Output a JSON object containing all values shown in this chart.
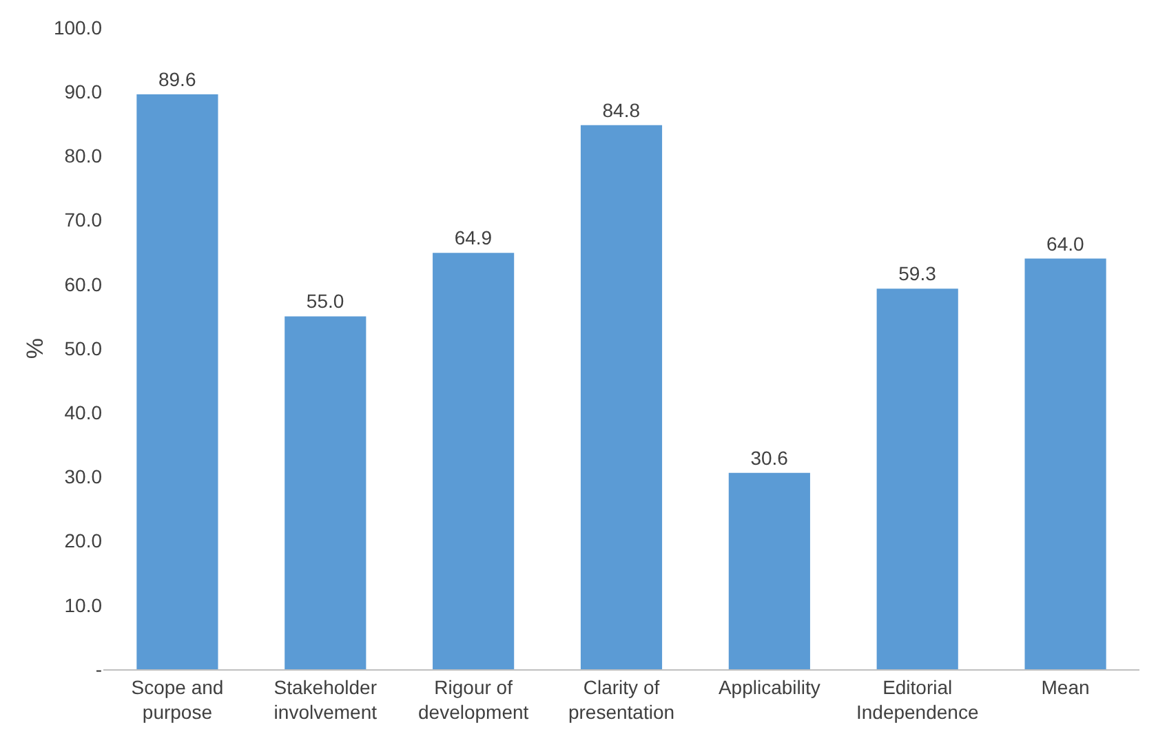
{
  "chart_data": {
    "type": "bar",
    "ylabel": "%",
    "categories": [
      "Scope and purpose",
      "Stakeholder involvement",
      "Rigour of development",
      "Clarity of presentation",
      "Applicability",
      "Editorial Independence",
      "Mean"
    ],
    "values": [
      89.6,
      55.0,
      64.9,
      84.8,
      30.6,
      59.3,
      64.0
    ],
    "value_labels": [
      "89.6",
      "55.0",
      "64.9",
      "84.8",
      "30.6",
      "59.3",
      "64.0"
    ],
    "color": "#5b9bd5",
    "ylim": [
      0,
      100
    ],
    "yticks": [
      {
        "value": 0,
        "label": "-"
      },
      {
        "value": 10,
        "label": "10.0"
      },
      {
        "value": 20,
        "label": "20.0"
      },
      {
        "value": 30,
        "label": "30.0"
      },
      {
        "value": 40,
        "label": "40.0"
      },
      {
        "value": 50,
        "label": "50.0"
      },
      {
        "value": 60,
        "label": "60.0"
      },
      {
        "value": 70,
        "label": "70.0"
      },
      {
        "value": 80,
        "label": "80.0"
      },
      {
        "value": 90,
        "label": "90.0"
      },
      {
        "value": 100,
        "label": "100.0"
      }
    ],
    "grid": false
  }
}
